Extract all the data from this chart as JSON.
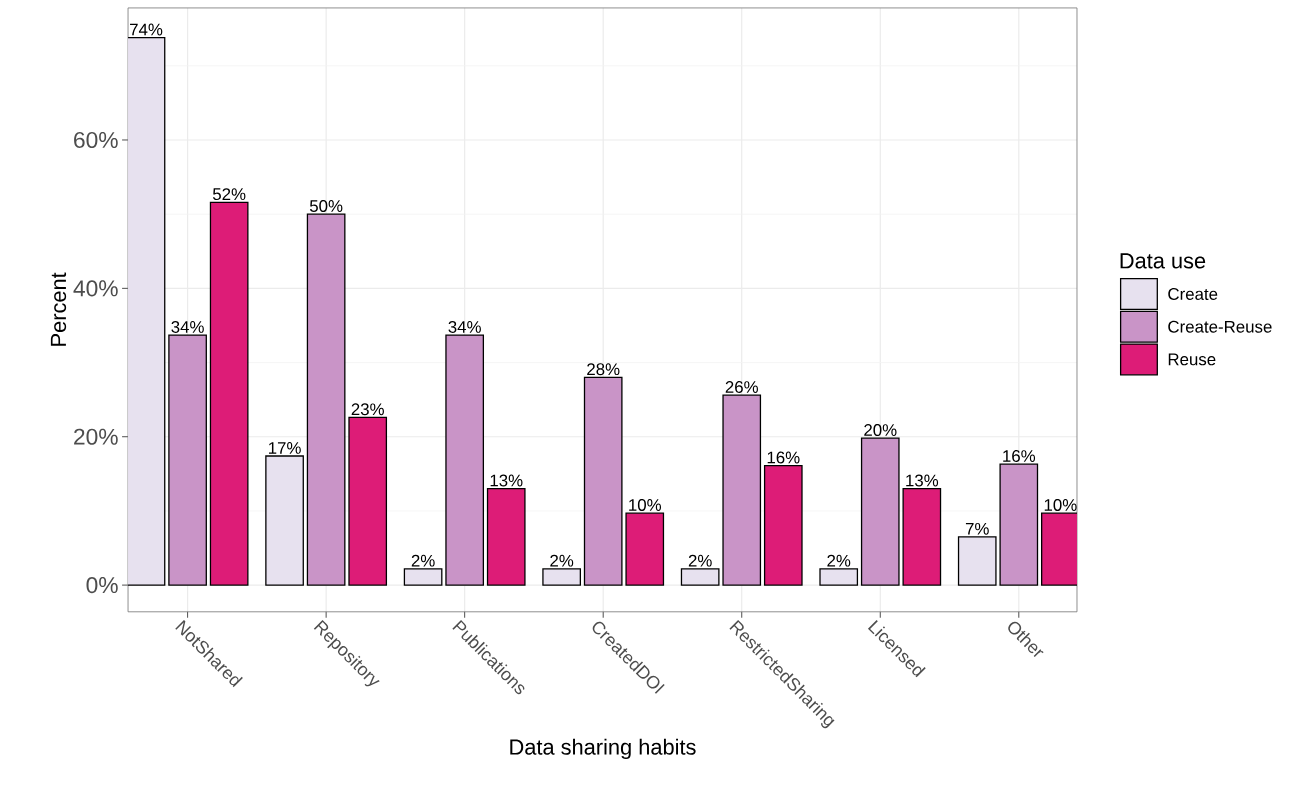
{
  "chart_data": {
    "type": "bar",
    "xlabel": "Data sharing habits",
    "ylabel": "Percent",
    "legend_title": "Data use",
    "categories": [
      "NotShared",
      "Repository",
      "Publications",
      "CreatedDOI",
      "RestrictedSharing",
      "Licensed",
      "Other"
    ],
    "series": [
      {
        "name": "Create",
        "color": "#e7e1ef",
        "values": [
          73.8,
          17.4,
          2.2,
          2.2,
          2.2,
          2.2,
          6.5
        ],
        "value_labels": [
          "74%",
          "17%",
          "2%",
          "2%",
          "2%",
          "2%",
          "7%"
        ]
      },
      {
        "name": "Create-Reuse",
        "color": "#c994c7",
        "values": [
          33.7,
          50,
          33.7,
          28,
          25.6,
          19.8,
          16.3
        ],
        "value_labels": [
          "34%",
          "50%",
          "34%",
          "28%",
          "26%",
          "20%",
          "16%"
        ]
      },
      {
        "name": "Reuse",
        "color": "#dd1c77",
        "values": [
          51.6,
          22.6,
          13,
          9.7,
          16.1,
          13,
          9.7
        ],
        "value_labels": [
          "52%",
          "23%",
          "13%",
          "10%",
          "16%",
          "13%",
          "10%"
        ]
      }
    ],
    "ylim": [
      -3.6,
      77.8
    ],
    "yticks": [
      {
        "value": 0,
        "label": "0%"
      },
      {
        "value": 10,
        "label": null
      },
      {
        "value": 20,
        "label": "20%"
      },
      {
        "value": 30,
        "label": null
      },
      {
        "value": 40,
        "label": "40%"
      },
      {
        "value": 50,
        "label": null
      },
      {
        "value": 60,
        "label": "60%"
      },
      {
        "value": 70,
        "label": null
      }
    ],
    "grid": true,
    "legend": "right"
  }
}
